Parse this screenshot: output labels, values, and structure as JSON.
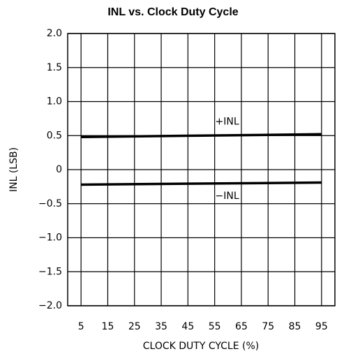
{
  "chart_data": {
    "type": "line",
    "title": "INL vs. Clock Duty Cycle",
    "xlabel": "CLOCK DUTY CYCLE (%)",
    "ylabel": "INL (LSB)",
    "x": [
      5,
      95
    ],
    "series": [
      {
        "name": "+INL",
        "color": "#000000",
        "values": [
          0.48,
          0.52
        ]
      },
      {
        "name": "−INL",
        "color": "#000000",
        "values": [
          -0.22,
          -0.19
        ]
      }
    ],
    "xlim": [
      0,
      100
    ],
    "xticks": [
      5,
      15,
      25,
      35,
      45,
      55,
      65,
      75,
      85,
      95
    ],
    "ylim": [
      -2,
      2
    ],
    "yticks": [
      {
        "value": -2,
        "label": "−2.0"
      },
      {
        "value": -1.5,
        "label": "−1.5"
      },
      {
        "value": -1,
        "label": "−1.0"
      },
      {
        "value": -0.5,
        "label": "−0.5"
      },
      0,
      {
        "value": 0.5,
        "label": "0.5"
      },
      {
        "value": 1,
        "label": "1.0"
      },
      {
        "value": 1.5,
        "label": "1.5"
      },
      {
        "value": 2,
        "label": "2.0"
      }
    ],
    "grid": true
  }
}
